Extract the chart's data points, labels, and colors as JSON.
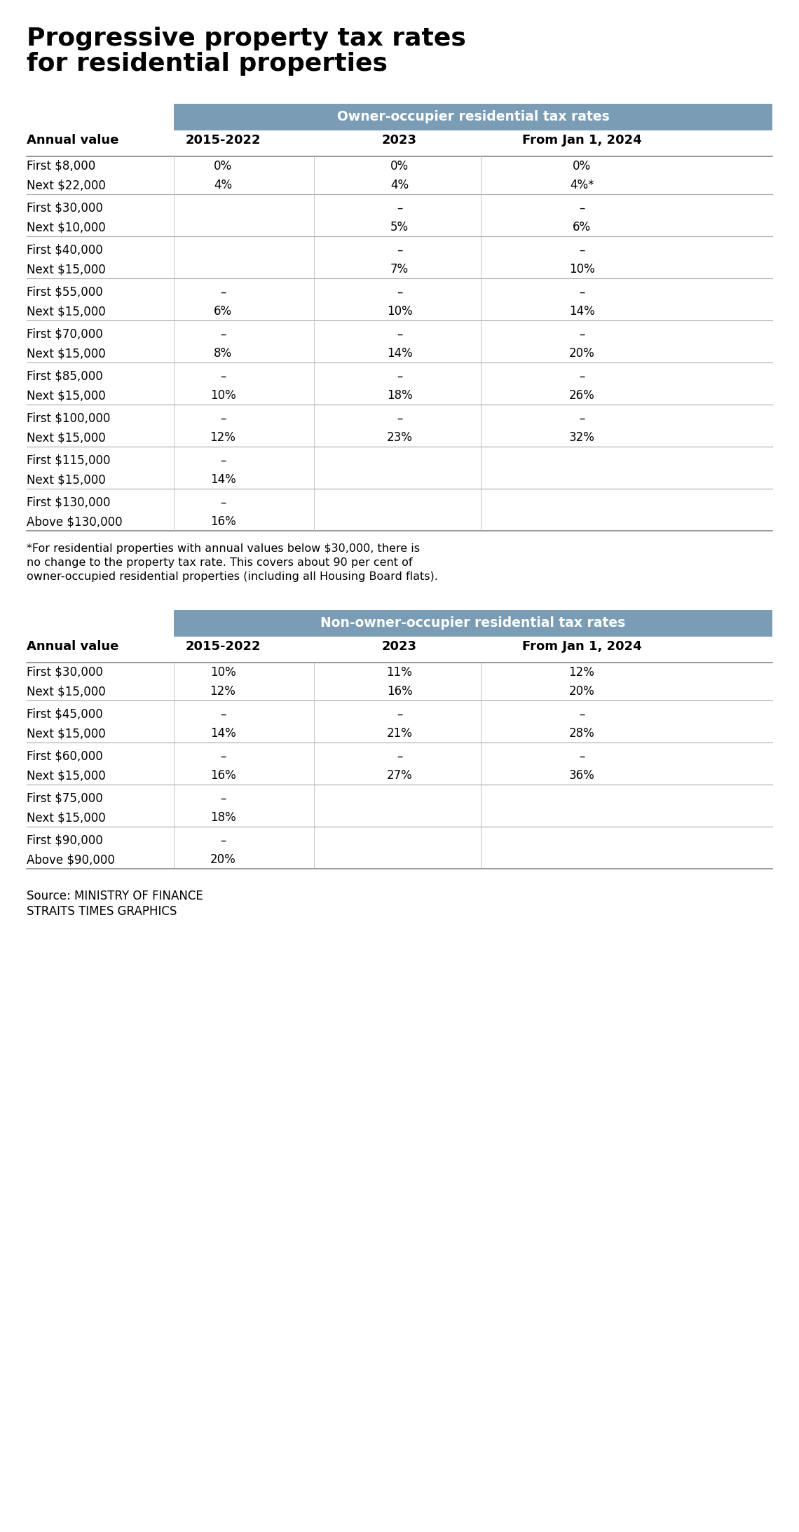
{
  "title_line1": "Progressive property tax rates",
  "title_line2": "for residential properties",
  "title_fontsize": 26,
  "background_color": "#ffffff",
  "header_bg_color": "#7a9db5",
  "header_text_color": "#ffffff",
  "table1_header": "Owner-occupier residential tax rates",
  "table2_header": "Non-owner-occupier residential tax rates",
  "col_headers": [
    "Annual value",
    "2015-2022",
    "2023",
    "From Jan 1, 2024"
  ],
  "table1_rows": [
    [
      "First $8,000",
      "0%",
      "0%",
      "0%"
    ],
    [
      "Next $22,000",
      "4%",
      "4%",
      "4%*"
    ],
    [
      "First $30,000",
      "",
      "–",
      "–"
    ],
    [
      "Next $10,000",
      "",
      "5%",
      "6%"
    ],
    [
      "First $40,000",
      "",
      "–",
      "–"
    ],
    [
      "Next $15,000",
      "",
      "7%",
      "10%"
    ],
    [
      "First $55,000",
      "–",
      "–",
      "–"
    ],
    [
      "Next $15,000",
      "6%",
      "10%",
      "14%"
    ],
    [
      "First $70,000",
      "–",
      "–",
      "–"
    ],
    [
      "Next $15,000",
      "8%",
      "14%",
      "20%"
    ],
    [
      "First $85,000",
      "–",
      "–",
      "–"
    ],
    [
      "Next $15,000",
      "10%",
      "18%",
      "26%"
    ],
    [
      "First $100,000",
      "–",
      "–",
      "–"
    ],
    [
      "Next $15,000",
      "12%",
      "23%",
      "32%"
    ],
    [
      "First $115,000",
      "–",
      "",
      ""
    ],
    [
      "Next $15,000",
      "14%",
      "",
      ""
    ],
    [
      "First $130,000",
      "–",
      "",
      ""
    ],
    [
      "Above $130,000",
      "16%",
      "",
      ""
    ]
  ],
  "table1_row_groups": [
    [
      0,
      1
    ],
    [
      2,
      3
    ],
    [
      4,
      5
    ],
    [
      6,
      7
    ],
    [
      8,
      9
    ],
    [
      10,
      11
    ],
    [
      12,
      13
    ],
    [
      14,
      15
    ],
    [
      16,
      17
    ]
  ],
  "footnote_lines": [
    "*For residential properties with annual values below $30,000, there is",
    "no change to the property tax rate. This covers about 90 per cent of",
    "owner-occupied residential properties (including all Housing Board flats)."
  ],
  "table2_rows": [
    [
      "First $30,000",
      "10%",
      "11%",
      "12%"
    ],
    [
      "Next $15,000",
      "12%",
      "16%",
      "20%"
    ],
    [
      "First $45,000",
      "–",
      "–",
      "–"
    ],
    [
      "Next $15,000",
      "14%",
      "21%",
      "28%"
    ],
    [
      "First $60,000",
      "–",
      "–",
      "–"
    ],
    [
      "Next $15,000",
      "16%",
      "27%",
      "36%"
    ],
    [
      "First $75,000",
      "–",
      "",
      ""
    ],
    [
      "Next $15,000",
      "18%",
      "",
      ""
    ],
    [
      "First $90,000",
      "–",
      "",
      ""
    ],
    [
      "Above $90,000",
      "20%",
      "",
      ""
    ]
  ],
  "table2_row_groups": [
    [
      0,
      1
    ],
    [
      2,
      3
    ],
    [
      4,
      5
    ],
    [
      6,
      7
    ],
    [
      8,
      9
    ]
  ],
  "source_line1": "Source: MINISTRY OF FINANCE",
  "source_line2": "STRAITS TIMES GRAPHICS"
}
